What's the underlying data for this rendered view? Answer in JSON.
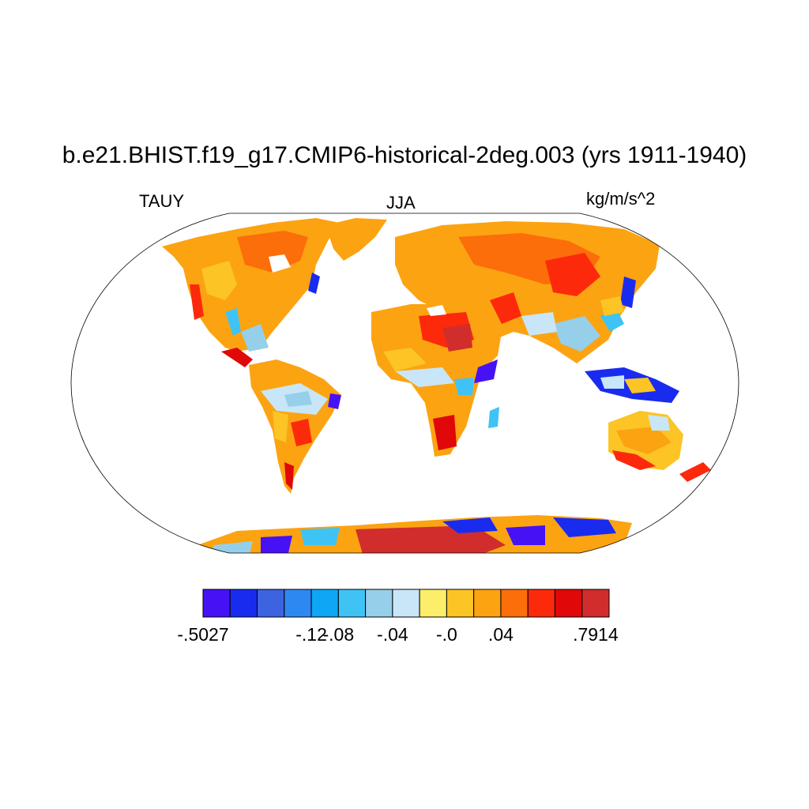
{
  "title": "b.e21.BHIST.f19_g17.CMIP6-historical-2deg.003 (yrs 1911-1940)",
  "left_label": "TAUY",
  "center_label": "JJA",
  "right_label": "kg/m/s^2",
  "colorbar": {
    "colors": [
      "#4612f5",
      "#1a2bf0",
      "#3e63e0",
      "#2e88f2",
      "#0ea6f5",
      "#3fc3f5",
      "#96cfe9",
      "#c8e6f7",
      "#fcee6a",
      "#fcc425",
      "#fca312",
      "#fc6e0a",
      "#fc2a0a",
      "#e00808",
      "#d12d2d"
    ],
    "tick_labels": [
      {
        "text": "-.5027",
        "boundary": 0
      },
      {
        "text": "-.12",
        "boundary": 4
      },
      {
        "text": "-.08",
        "boundary": 5
      },
      {
        "text": "-.04",
        "boundary": 7
      },
      {
        "text": "-.0",
        "boundary": 9
      },
      {
        "text": ".04",
        "boundary": 11
      },
      {
        "text": ".7914",
        "boundary": 14
      }
    ]
  }
}
